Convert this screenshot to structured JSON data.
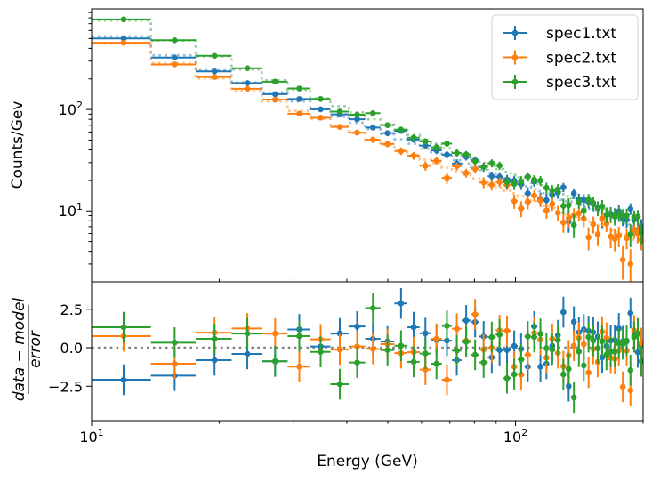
{
  "chart_data": [
    {
      "panel": "spectrum",
      "type": "scatter",
      "xscale": "log",
      "yscale": "log",
      "xlim": [
        10,
        200
      ],
      "ylim": [
        2.0,
        980
      ],
      "xlabel": "",
      "ylabel": "Counts/Gev",
      "ytick_labels": [
        {
          "base": "10",
          "exp": "2",
          "value": 100
        },
        {
          "base": "10",
          "exp": "1",
          "value": 10
        }
      ],
      "legend": {
        "placement": "top-right",
        "entries": [
          "spec1.txt",
          "spec2.txt",
          "spec3.txt"
        ]
      },
      "x": [
        11.9,
        15.7,
        19.5,
        23.3,
        27.1,
        30.9,
        34.7,
        38.5,
        42.3,
        46.1,
        49.9,
        53.7,
        57.5,
        61.3,
        65.1,
        68.9,
        72.7,
        76.5,
        80.3,
        84.1,
        87.9,
        91.7,
        95.5,
        99.3,
        103.1,
        106.9,
        110.7,
        114.5,
        118.3,
        122.1,
        125.9,
        129.7,
        133.5,
        137.3,
        141.1,
        144.9,
        148.7,
        152.5,
        156.3,
        160.1,
        163.9,
        167.7,
        171.5,
        175.3,
        179.1,
        182.9,
        186.7,
        190.5,
        194.3,
        198.1
      ],
      "xerr": 1.9,
      "series": [
        {
          "name": "spec1.txt",
          "color": "#1f77b4",
          "y": [
            501,
            325,
            237.5,
            182.2,
            141.5,
            126.7,
            100.4,
            89.4,
            80.1,
            66.4,
            58.5,
            61.5,
            50.6,
            44.1,
            39.6,
            35.9,
            29.4,
            34.2,
            31.7,
            27.2,
            22.0,
            21.7,
            20.4,
            19.9,
            18.3,
            14.9,
            19.4,
            13.2,
            12.8,
            14.4,
            15.1,
            17.1,
            7.9,
            14.9,
            13.1,
            12.9,
            12.3,
            11.7,
            10.8,
            8.4,
            9.2,
            9.4,
            9.1,
            9.9,
            8.5,
            8.2,
            10.5,
            8.2,
            6.5,
            7.0
          ],
          "yerr": [
            11.8,
            9.5,
            8.0,
            7.0,
            6.2,
            5.6,
            5.1,
            4.7,
            4.4,
            4.1,
            3.9,
            3.7,
            3.5,
            3.3,
            3.2,
            3.0,
            2.9,
            2.8,
            2.7,
            2.6,
            2.5,
            2.4,
            2.3,
            2.3,
            2.2,
            2.2,
            2.1,
            2.0,
            2.0,
            1.9,
            1.9,
            1.8,
            1.8,
            1.8,
            1.7,
            1.7,
            1.7,
            1.6,
            1.6,
            1.6,
            1.5,
            1.5,
            1.5,
            1.5,
            1.4,
            1.4,
            1.4,
            1.4,
            1.4,
            1.3
          ],
          "model": [
            525,
            342,
            244,
            185,
            147,
            120,
            100,
            85,
            74,
            64,
            57,
            51,
            46,
            41,
            38,
            34.5,
            31.7,
            29.3,
            27.2,
            25.3,
            23.6,
            22.1,
            20.8,
            19.6,
            18.5,
            17.5,
            16.5,
            15.7,
            14.9,
            14.2,
            13.6,
            12.9,
            12.4,
            11.9,
            11.4,
            10.9,
            10.5,
            10.1,
            9.7,
            9.4,
            9.0,
            8.7,
            8.4,
            8.1,
            7.9,
            7.6,
            7.4,
            7.1,
            6.9,
            6.7
          ]
        },
        {
          "name": "spec2.txt",
          "color": "#ff7f0e",
          "y": [
            454,
            278,
            209,
            160,
            125,
            90.9,
            83.0,
            67.5,
            59.2,
            50.4,
            45.8,
            39.0,
            35.1,
            27.9,
            31.2,
            21.2,
            27.6,
            23.7,
            26.0,
            19.1,
            18.1,
            19.3,
            18.0,
            12.5,
            10.6,
            12.3,
            14.2,
            12.7,
            10.1,
            11.7,
            9.6,
            7.7,
            8.5,
            9.1,
            9.5,
            8.4,
            5.5,
            7.4,
            5.9,
            8.4,
            7.5,
            5.6,
            5.3,
            5.7,
            3.3,
            5.4,
            3.0,
            6.5,
            6.0,
            5.2
          ],
          "yerr": [
            10.8,
            8.7,
            7.3,
            6.3,
            5.6,
            5.1,
            4.6,
            4.2,
            3.9,
            3.7,
            3.4,
            3.3,
            3.1,
            2.9,
            2.8,
            2.7,
            2.5,
            2.4,
            2.4,
            2.3,
            2.2,
            2.1,
            2.0,
            2.0,
            1.9,
            1.9,
            1.8,
            1.8,
            1.7,
            1.7,
            1.6,
            1.6,
            1.6,
            1.5,
            1.5,
            1.5,
            1.4,
            1.4,
            1.4,
            1.4,
            1.3,
            1.3,
            1.3,
            1.3,
            1.2,
            1.2,
            1.2,
            1.2,
            1.2,
            1.1
          ],
          "model": [
            446,
            287,
            202,
            152,
            120,
            97.1,
            80.5,
            68.0,
            58.9,
            50.7,
            45.0,
            40.1,
            36.0,
            32.0,
            29.6,
            26.7,
            24.5,
            22.6,
            20.9,
            19.4,
            18.1,
            16.9,
            15.8,
            14.9,
            14.0,
            13.2,
            12.5,
            11.8,
            11.2,
            10.7,
            10.2,
            9.65,
            9.26,
            8.88,
            8.49,
            8.11,
            7.8,
            7.49,
            7.19,
            6.96,
            6.65,
            6.42,
            6.19,
            5.96,
            5.81,
            5.58,
            5.42,
            5.2,
            5.04,
            4.89
          ]
        },
        {
          "name": "spec3.txt",
          "color": "#2ca02c",
          "y": [
            772,
            481,
            338,
            255,
            188,
            161,
            127,
            95.4,
            88.7,
            91.9,
            70.2,
            63.4,
            52.8,
            48.5,
            42.4,
            46.2,
            37.3,
            36.1,
            30.9,
            27.1,
            29.6,
            28.0,
            19.2,
            18.5,
            19.6,
            21.8,
            20.4,
            19.9,
            16.9,
            15.9,
            16.4,
            11.2,
            11.4,
            7.3,
            12.3,
            10.1,
            12.9,
            12.0,
            10.6,
            11.1,
            9.2,
            9.2,
            8.8,
            9.3,
            8.9,
            9.0,
            5.9,
            8.7,
            8.8,
            6.1
          ],
          "yerr": [
            14.1,
            11.2,
            9.4,
            8.1,
            7.2,
            6.4,
            5.8,
            5.3,
            5.0,
            4.6,
            4.3,
            4.1,
            3.9,
            3.6,
            3.5,
            3.3,
            3.2,
            3.0,
            2.9,
            2.8,
            2.7,
            2.6,
            2.5,
            2.4,
            2.4,
            2.3,
            2.2,
            2.2,
            2.1,
            2.1,
            2.0,
            2.0,
            1.9,
            1.9,
            1.8,
            1.8,
            1.8,
            1.7,
            1.7,
            1.7,
            1.6,
            1.6,
            1.6,
            1.5,
            1.5,
            1.5,
            1.5,
            1.4,
            1.4,
            1.4
          ],
          "model": [
            753,
            477,
            333,
            248,
            194,
            156,
            129,
            108,
            93.5,
            80.1,
            70.8,
            62.9,
            56.3,
            49.9,
            46.0,
            41.5,
            37.9,
            34.9,
            32.2,
            29.8,
            27.7,
            25.8,
            24.2,
            22.7,
            21.4,
            20.1,
            18.9,
            17.9,
            17.0,
            16.1,
            15.4,
            14.6,
            14.0,
            13.4,
            12.8,
            12.2,
            11.7,
            11.2,
            10.7,
            10.4,
            9.93,
            9.58,
            9.22,
            8.88,
            8.64,
            8.29,
            8.05,
            7.72,
            7.48,
            7.26
          ]
        }
      ]
    },
    {
      "panel": "residuals",
      "type": "scatter",
      "xscale": "log",
      "xlim": [
        10,
        200
      ],
      "ylim": [
        -4.74,
        4.28
      ],
      "xlabel": "Energy (GeV)",
      "ylabel": {
        "numerator": "data − model",
        "denominator": "error"
      },
      "ytick_labels": [
        {
          "label": "2.5",
          "value": 2.5
        },
        {
          "label": "0.0",
          "value": 0
        },
        {
          "label": "−2.5",
          "value": -2.5
        }
      ],
      "xtick_labels": [
        {
          "base": "10",
          "exp": "1",
          "value": 10
        },
        {
          "base": "10",
          "exp": "2",
          "value": 100
        }
      ],
      "zero_line": {
        "value": 0,
        "color": "#808080",
        "style": "dotted"
      },
      "residual_err": 1,
      "series": [
        {
          "name": "spec1.txt",
          "color": "#1f77b4",
          "y": [
            -2.08,
            -1.81,
            -0.81,
            -0.4,
            -0.88,
            1.19,
            0.08,
            0.92,
            1.38,
            0.58,
            0.4,
            2.88,
            1.33,
            0.94,
            0.5,
            0.46,
            -0.81,
            1.77,
            1.67,
            0.73,
            -0.63,
            -0.15,
            -0.15,
            0.12,
            -0.08,
            -1.23,
            1.38,
            -1.23,
            -1.04,
            0.12,
            0.81,
            2.31,
            -2.5,
            1.69,
            1.0,
            1.19,
            1.08,
            1.0,
            0.71,
            -0.62,
            0.12,
            0.46,
            0.5,
            1.25,
            0.42,
            0.42,
            2.25,
            0.81,
            -0.3,
            0.2
          ]
        },
        {
          "name": "spec2.txt",
          "color": "#ff7f0e",
          "y": [
            0.75,
            -1.04,
            0.98,
            1.25,
            0.92,
            -1.23,
            0.54,
            -0.12,
            0.08,
            -0.08,
            0.23,
            -0.35,
            -0.29,
            -1.42,
            0.58,
            -2.08,
            1.23,
            0.46,
            2.17,
            -0.12,
            0.0,
            1.13,
            1.1,
            -1.23,
            -1.75,
            -0.46,
            0.96,
            0.52,
            -0.65,
            0.58,
            -0.35,
            -1.21,
            -0.5,
            0.13,
            0.65,
            0.23,
            -1.62,
            -0.08,
            -0.92,
            1.04,
            0.65,
            -0.65,
            -0.73,
            -0.19,
            -2.54,
            -0.19,
            -2.77,
            1.12,
            0.88,
            0.3
          ]
        },
        {
          "name": "spec3.txt",
          "color": "#2ca02c",
          "y": [
            1.33,
            0.33,
            0.58,
            0.92,
            -0.88,
            0.75,
            -0.27,
            -2.37,
            -0.96,
            2.58,
            -0.15,
            0.13,
            -0.92,
            -0.38,
            -1.04,
            1.42,
            -0.19,
            0.38,
            -0.46,
            -0.96,
            0.69,
            0.85,
            -1.98,
            -1.73,
            -0.77,
            0.73,
            0.69,
            0.9,
            -0.04,
            -0.12,
            0.5,
            -1.73,
            -1.38,
            -3.23,
            -0.25,
            -1.15,
            0.69,
            0.46,
            -0.04,
            0.42,
            -0.46,
            -0.27,
            -0.27,
            0.27,
            0.23,
            0.46,
            -1.46,
            0.69,
            0.92,
            -0.88
          ]
        }
      ]
    }
  ]
}
